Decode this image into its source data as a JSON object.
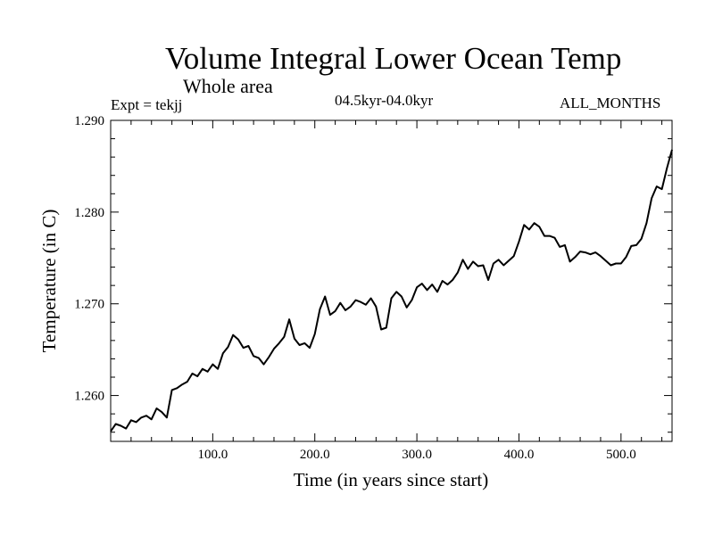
{
  "chart_data": {
    "type": "line",
    "title": "Volume Integral Lower Ocean Temp",
    "subtitle": "Whole area",
    "annotations": {
      "experiment": "Expt = tekjj",
      "period": "04.5kyr-04.0kyr",
      "months": "ALL_MONTHS"
    },
    "xlabel": "Time (in years since start)",
    "ylabel": "Temperature (in C)",
    "xlim": [
      0,
      550
    ],
    "ylim": [
      1.255,
      1.29
    ],
    "xticks": [
      100,
      200,
      300,
      400,
      500
    ],
    "xtick_labels": [
      "100.0",
      "200.0",
      "300.0",
      "400.0",
      "500.0"
    ],
    "yticks": [
      1.26,
      1.27,
      1.28,
      1.29
    ],
    "ytick_labels": [
      "1.260",
      "1.270",
      "1.280",
      "1.290"
    ],
    "grid": false,
    "series": [
      {
        "name": "tekjj",
        "x": [
          0,
          5,
          10,
          15,
          20,
          25,
          30,
          35,
          40,
          45,
          50,
          55,
          60,
          65,
          70,
          75,
          80,
          85,
          90,
          95,
          100,
          105,
          110,
          115,
          120,
          125,
          130,
          135,
          140,
          145,
          150,
          155,
          160,
          165,
          170,
          175,
          180,
          185,
          190,
          195,
          200,
          205,
          210,
          215,
          220,
          225,
          230,
          235,
          240,
          245,
          250,
          255,
          260,
          265,
          270,
          275,
          280,
          285,
          290,
          295,
          300,
          305,
          310,
          315,
          320,
          325,
          330,
          335,
          340,
          345,
          350,
          355,
          360,
          365,
          370,
          375,
          380,
          385,
          390,
          395,
          400,
          405,
          410,
          415,
          420,
          425,
          430,
          435,
          440,
          445,
          450,
          455,
          460,
          465,
          470,
          475,
          480,
          485,
          490,
          495,
          500,
          505,
          510,
          515,
          520,
          525,
          530,
          535,
          540,
          545,
          550
        ],
        "y": [
          1.2561,
          1.2569,
          1.2567,
          1.2564,
          1.2573,
          1.2571,
          1.2576,
          1.2578,
          1.2574,
          1.2586,
          1.2582,
          1.2576,
          1.2606,
          1.2608,
          1.2612,
          1.2615,
          1.2624,
          1.2621,
          1.2629,
          1.2626,
          1.2634,
          1.2629,
          1.2646,
          1.2653,
          1.2666,
          1.2661,
          1.2652,
          1.2654,
          1.2643,
          1.2641,
          1.2634,
          1.2642,
          1.2651,
          1.2657,
          1.2664,
          1.2683,
          1.2662,
          1.2655,
          1.2657,
          1.2652,
          1.2667,
          1.2694,
          1.2708,
          1.2688,
          1.2692,
          1.2701,
          1.2693,
          1.2697,
          1.2704,
          1.2702,
          1.2699,
          1.2706,
          1.2697,
          1.2672,
          1.2674,
          1.2706,
          1.2713,
          1.2708,
          1.2696,
          1.2704,
          1.2718,
          1.2722,
          1.2715,
          1.2721,
          1.2713,
          1.2725,
          1.2721,
          1.2726,
          1.2734,
          1.2748,
          1.2738,
          1.2746,
          1.2741,
          1.2742,
          1.2726,
          1.2744,
          1.2748,
          1.2742,
          1.2747,
          1.2752,
          1.2768,
          1.2786,
          1.2781,
          1.2788,
          1.2784,
          1.2774,
          1.2774,
          1.2772,
          1.2762,
          1.2764,
          1.2746,
          1.2751,
          1.2757,
          1.2756,
          1.2754,
          1.2756,
          1.2752,
          1.2747,
          1.2742,
          1.2744,
          1.2744,
          1.2751,
          1.2763,
          1.2764,
          1.2771,
          1.2788,
          1.2815,
          1.2828,
          1.2825,
          1.2848,
          1.2868
        ]
      }
    ]
  }
}
